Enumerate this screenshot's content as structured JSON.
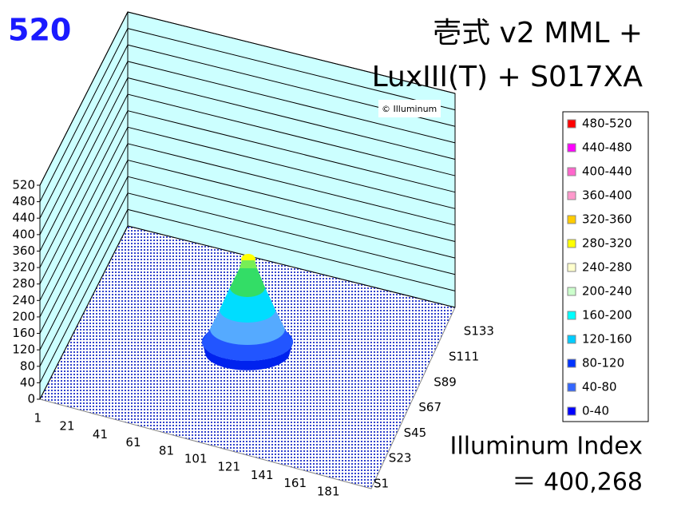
{
  "chart_data": {
    "type": "surface3d",
    "badge": "520",
    "title": [
      "壱式 v2 MML +",
      "LuxIII(T) + S017XA"
    ],
    "watermark": "© Illuminum",
    "annotation": [
      "Illuminum Index",
      "＝ 400,268"
    ],
    "zlim": [
      0,
      520
    ],
    "zticks": [
      0,
      40,
      80,
      120,
      160,
      200,
      240,
      280,
      320,
      360,
      400,
      440,
      480,
      520
    ],
    "x_categories": [
      "1",
      "21",
      "41",
      "61",
      "81",
      "101",
      "121",
      "141",
      "161",
      "181"
    ],
    "y_categories": [
      "S1",
      "S23",
      "S45",
      "S67",
      "S89",
      "S111",
      "S133"
    ],
    "series": [
      {
        "name": "480-520",
        "color": "#ff0000"
      },
      {
        "name": "440-480",
        "color": "#ff00ff"
      },
      {
        "name": "400-440",
        "color": "#ff66cc"
      },
      {
        "name": "360-400",
        "color": "#ff99cc"
      },
      {
        "name": "320-360",
        "color": "#ffcc00"
      },
      {
        "name": "280-320",
        "color": "#ffff00"
      },
      {
        "name": "240-280",
        "color": "#ffffcc"
      },
      {
        "name": "200-240",
        "color": "#ccffcc"
      },
      {
        "name": "160-200",
        "color": "#00ffff"
      },
      {
        "name": "120-160",
        "color": "#00ccff"
      },
      {
        "name": "80-120",
        "color": "#0033ff"
      },
      {
        "name": "40-80",
        "color": "#3366ff"
      },
      {
        "name": "0-40",
        "color": "#0000ff"
      }
    ]
  }
}
